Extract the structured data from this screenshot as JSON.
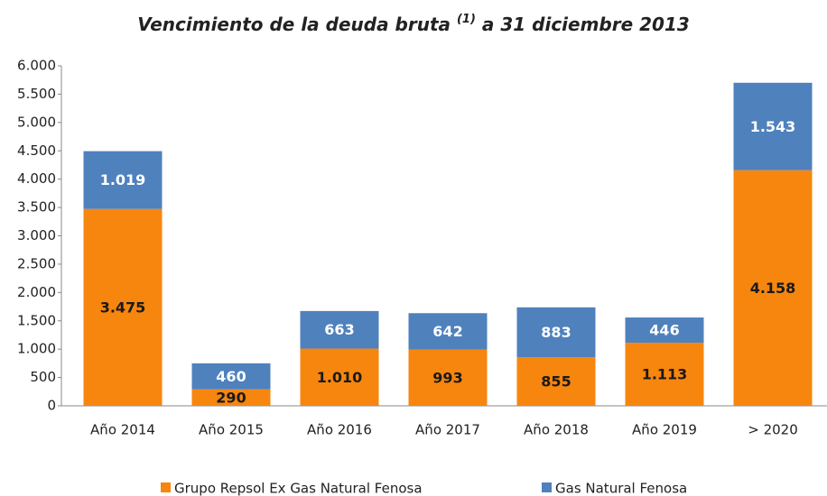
{
  "chart_data": {
    "type": "stacked_bar",
    "title": "Vencimiento de la deuda bruta",
    "title_superscript": "(1)",
    "title_suffix": "a 31 diciembre 2013",
    "categories": [
      "Año 2014",
      "Año 2015",
      "Año 2016",
      "Año 2017",
      "Año 2018",
      "Año 2019",
      "> 2020"
    ],
    "series": [
      {
        "name": "Grupo Repsol Ex Gas Natural Fenosa",
        "color": "#F7860E",
        "label_color": "#1a1a1a",
        "values": [
          3475,
          290,
          1010,
          993,
          855,
          1113,
          4158
        ],
        "value_labels": [
          "3.475",
          "290",
          "1.010",
          "993",
          "855",
          "1.113",
          "4.158"
        ]
      },
      {
        "name": "Gas Natural Fenosa",
        "color": "#4F81BD",
        "label_color": "#ffffff",
        "values": [
          1019,
          460,
          663,
          642,
          883,
          446,
          1543
        ],
        "value_labels": [
          "1.019",
          "460",
          "663",
          "642",
          "883",
          "446",
          "1.543"
        ]
      }
    ],
    "ylim": [
      0,
      6000
    ],
    "yticks": [
      0,
      500,
      {
        "value": 1000,
        "label": "1.000"
      },
      {
        "value": 1500,
        "label": "1.500"
      },
      {
        "value": 2000,
        "label": "2.000"
      },
      {
        "value": 2500,
        "label": "2.500"
      },
      {
        "value": 3000,
        "label": "3.000"
      },
      {
        "value": 3500,
        "label": "3.500"
      },
      {
        "value": 4000,
        "label": "4.000"
      },
      {
        "value": 4500,
        "label": "4.500"
      },
      {
        "value": 5000,
        "label": "5.000"
      },
      {
        "value": 5500,
        "label": "5.500"
      },
      {
        "value": 6000,
        "label": "6.000"
      }
    ],
    "legend": "bottom"
  }
}
